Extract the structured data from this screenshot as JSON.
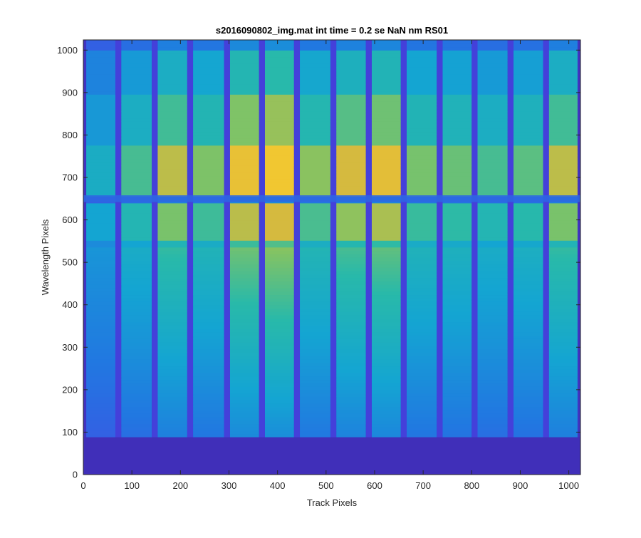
{
  "chart_data": {
    "type": "heatmap",
    "title": "s2016090802_img.mat int time = 0.2 se  NaN nm RS01",
    "xlabel": "Track Pixels",
    "ylabel": "Wavelength Pixels",
    "xlim": [
      0,
      1024
    ],
    "ylim": [
      0,
      1024
    ],
    "x_ticks": [
      0,
      100,
      200,
      300,
      400,
      500,
      600,
      700,
      800,
      900,
      1000
    ],
    "y_ticks": [
      0,
      100,
      200,
      300,
      400,
      500,
      600,
      700,
      800,
      900,
      1000
    ],
    "colormap": "parula",
    "colors": {
      "low": "#3d2f9a",
      "mid_low": "#1e78d4",
      "mid": "#18b0c2",
      "mid_high": "#8cc252",
      "high": "#f5c23c"
    },
    "dark_track_gaps_x": [
      72,
      147,
      220,
      296,
      368,
      440,
      515,
      588,
      660,
      734,
      806,
      880,
      953
    ],
    "dark_wavelength_band_y": 650,
    "low_signal_region_y": [
      0,
      88
    ],
    "tracks": [
      {
        "x_range": [
          0,
          72
        ],
        "relative_intensity": 0.45
      },
      {
        "x_range": [
          72,
          147
        ],
        "relative_intensity": 0.6
      },
      {
        "x_range": [
          147,
          220
        ],
        "relative_intensity": 0.78
      },
      {
        "x_range": [
          220,
          296
        ],
        "relative_intensity": 0.68
      },
      {
        "x_range": [
          296,
          368
        ],
        "relative_intensity": 0.9
      },
      {
        "x_range": [
          368,
          440
        ],
        "relative_intensity": 0.95
      },
      {
        "x_range": [
          440,
          515
        ],
        "relative_intensity": 0.7
      },
      {
        "x_range": [
          515,
          588
        ],
        "relative_intensity": 0.82
      },
      {
        "x_range": [
          588,
          660
        ],
        "relative_intensity": 0.87
      },
      {
        "x_range": [
          660,
          734
        ],
        "relative_intensity": 0.67
      },
      {
        "x_range": [
          734,
          806
        ],
        "relative_intensity": 0.65
      },
      {
        "x_range": [
          806,
          880
        ],
        "relative_intensity": 0.6
      },
      {
        "x_range": [
          880,
          953
        ],
        "relative_intensity": 0.63
      },
      {
        "x_range": [
          953,
          1024
        ],
        "relative_intensity": 0.78
      }
    ],
    "grid": false,
    "legend": "none"
  }
}
